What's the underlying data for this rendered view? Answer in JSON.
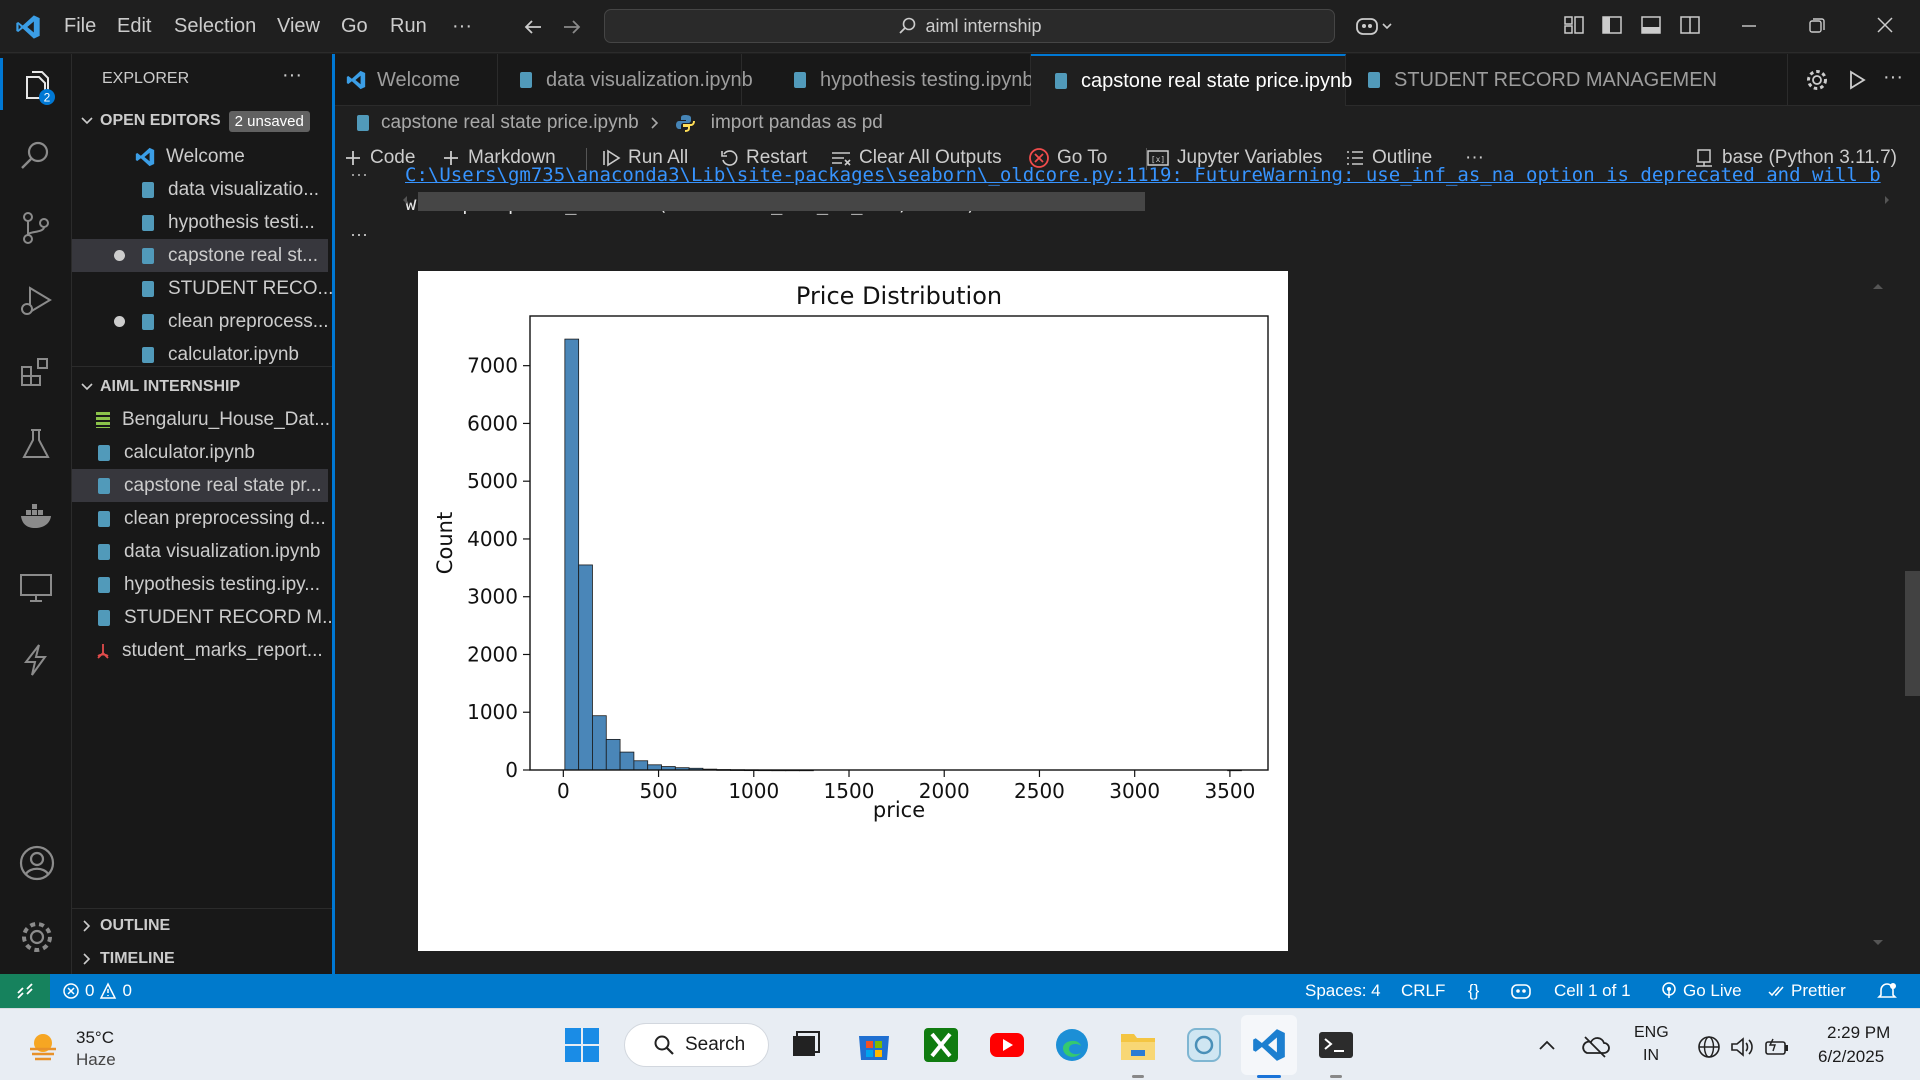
{
  "titlebar": {
    "menu": [
      "File",
      "Edit",
      "Selection",
      "View",
      "Go",
      "Run",
      "···"
    ],
    "search_text": "aiml internship"
  },
  "activity": {
    "explorer_badge": "2"
  },
  "sidebar": {
    "header": "EXPLORER",
    "header_more": "···",
    "open_editors_title": "OPEN EDITORS",
    "open_editors_badge": "2 unsaved",
    "open_editors": [
      {
        "label": "Welcome",
        "dirty": false
      },
      {
        "label": "data visualizatio...",
        "dirty": false
      },
      {
        "label": "hypothesis testi...",
        "dirty": false
      },
      {
        "label": "capstone real st...",
        "dirty": true
      },
      {
        "label": "STUDENT RECO...",
        "dirty": false
      },
      {
        "label": "clean preprocess...",
        "dirty": true
      },
      {
        "label": "calculator.ipynb",
        "dirty": false
      }
    ],
    "folder_title": "AIML INTERNSHIP",
    "files": [
      {
        "label": "Bengaluru_House_Dat...",
        "kind": "csv"
      },
      {
        "label": "calculator.ipynb",
        "kind": "notebook"
      },
      {
        "label": "capstone real state pr...",
        "kind": "notebook"
      },
      {
        "label": "clean preprocessing d...",
        "kind": "notebook"
      },
      {
        "label": "data visualization.ipynb",
        "kind": "notebook"
      },
      {
        "label": "hypothesis testing.ipy...",
        "kind": "notebook"
      },
      {
        "label": "STUDENT RECORD M...",
        "kind": "notebook"
      },
      {
        "label": "student_marks_report...",
        "kind": "pdf"
      }
    ],
    "outline": "OUTLINE",
    "timeline": "TIMELINE"
  },
  "tabs": [
    {
      "label": "Welcome"
    },
    {
      "label": "data visualization.ipynb"
    },
    {
      "label": "hypothesis testing.ipynb"
    },
    {
      "label": "capstone real state price.ipynb"
    },
    {
      "label": "STUDENT RECORD MANAGEMEN"
    }
  ],
  "breadcrumb": {
    "file": "capstone real state price.ipynb",
    "symbol": "import pandas as pd"
  },
  "toolbar": {
    "code": "Code",
    "markdown": "Markdown",
    "run_all": "Run All",
    "restart": "Restart",
    "clear": "Clear All Outputs",
    "goto": "Go To",
    "variables": "Jupyter Variables",
    "outline": "Outline",
    "more": "···",
    "kernel": "base (Python 3.11.7)"
  },
  "cell": {
    "warning_line": "C:\\Users\\gm735\\anaconda3\\Lib\\site-packages\\seaborn\\_oldcore.py:1119: FutureWarning: use_inf_as_na option is deprecated and will b",
    "code_line": "  with pd.option_context('mode.use_inf_as_na', True):",
    "more": "···"
  },
  "chart_data": {
    "type": "bar",
    "title": "Price Distribution",
    "xlabel": "price",
    "ylabel": "Count",
    "xlim": [
      -175,
      3700
    ],
    "ylim": [
      0,
      7860
    ],
    "xticks": [
      0,
      500,
      1000,
      1500,
      2000,
      2500,
      3000,
      3500
    ],
    "yticks": [
      0,
      1000,
      2000,
      3000,
      4000,
      5000,
      6000,
      7000
    ],
    "bin_width": 72.5,
    "bin_start": 8,
    "values": [
      7460,
      3550,
      940,
      530,
      310,
      160,
      90,
      60,
      40,
      30,
      15,
      8,
      5,
      3,
      2,
      1,
      1,
      1,
      0,
      0,
      0,
      0,
      0,
      0,
      0,
      0,
      0,
      0,
      0,
      0,
      0,
      0,
      0,
      0,
      0,
      0,
      0,
      0,
      0,
      0,
      0,
      0,
      0,
      0,
      0,
      0,
      0,
      0,
      1
    ],
    "bar_color": "#4a86b8",
    "grid": false
  },
  "status": {
    "problems_errors": "0",
    "problems_warnings": "0",
    "spaces": "Spaces: 4",
    "eol": "CRLF",
    "braces": "{}",
    "cell": "Cell 1 of 1",
    "golive": "Go Live",
    "prettier": "Prettier"
  },
  "taskbar": {
    "temp": "35°C",
    "weather": "Haze",
    "search": "Search",
    "lang1": "ENG",
    "lang2": "IN",
    "time": "2:29 PM",
    "date": "6/2/2025"
  }
}
